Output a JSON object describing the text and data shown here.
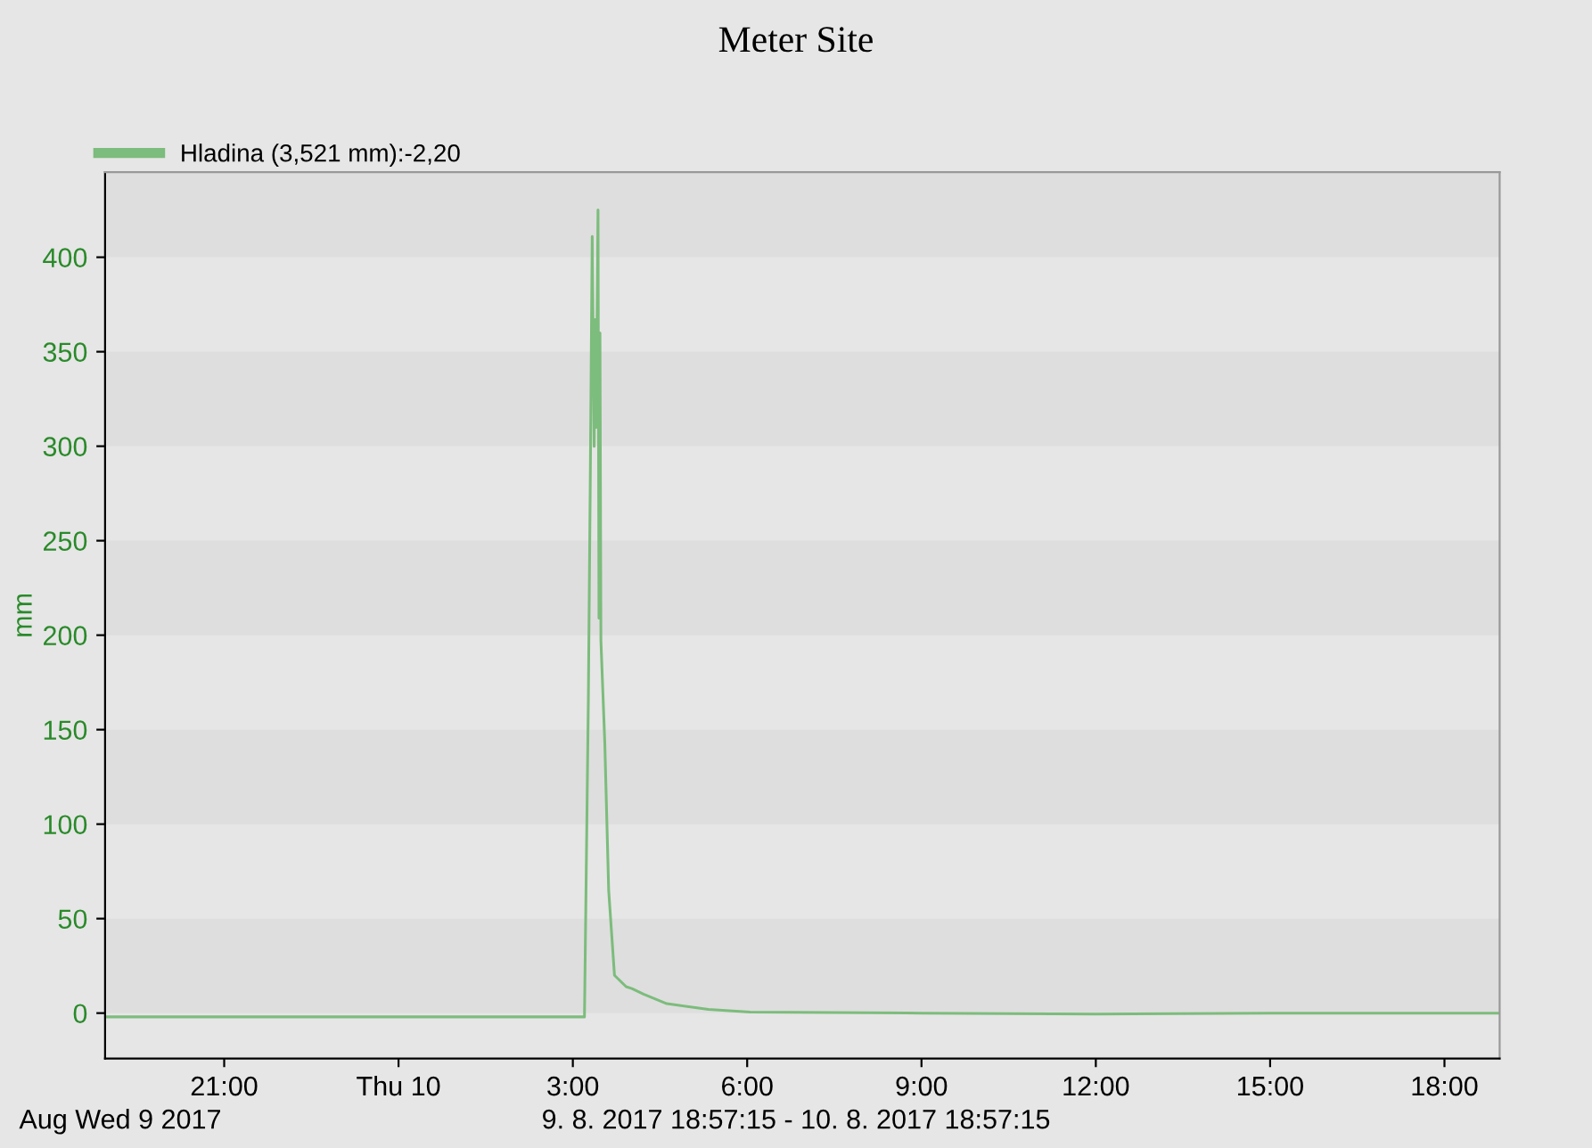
{
  "chart_data": {
    "type": "line",
    "title": "Meter Site",
    "ylabel": "mm",
    "annotations": [
      "Aug Wed 9 2017",
      "9. 8. 2017 18:57:15 - 10. 8. 2017 18:57:15"
    ],
    "series": [
      {
        "name": "Hladina (3,521 mm):-2,20",
        "color": "#7cbc7c",
        "x": [
          "2017-08-09T18:57",
          "2017-08-09T21:00",
          "2017-08-10T00:00",
          "2017-08-10T03:00",
          "2017-08-10T03:12",
          "2017-08-10T03:16",
          "2017-08-10T03:18",
          "2017-08-10T03:20",
          "2017-08-10T03:22",
          "2017-08-10T03:23",
          "2017-08-10T03:24",
          "2017-08-10T03:26",
          "2017-08-10T03:27",
          "2017-08-10T03:28",
          "2017-08-10T03:29",
          "2017-08-10T03:33",
          "2017-08-10T03:37",
          "2017-08-10T03:43",
          "2017-08-10T03:55",
          "2017-08-10T04:01",
          "2017-08-10T04:13",
          "2017-08-10T04:37",
          "2017-08-10T05:20",
          "2017-08-10T06:03",
          "2017-08-10T09:00",
          "2017-08-10T12:00",
          "2017-08-10T15:00",
          "2017-08-10T18:57"
        ],
        "values": [
          -2,
          -2,
          -2,
          -2,
          -2,
          165,
          282,
          411,
          300,
          367,
          310,
          425,
          209,
          360,
          197,
          143,
          65,
          20,
          14,
          13,
          10,
          5,
          2,
          0.5,
          0,
          -0.5,
          0,
          0
        ]
      }
    ],
    "xlim": [
      "2017-08-09T18:57",
      "2017-08-10T18:57"
    ],
    "xticks": [
      {
        "value": "2017-08-09T21:00",
        "label": "21:00"
      },
      {
        "value": "2017-08-10T00:00",
        "label": "Thu 10"
      },
      {
        "value": "2017-08-10T03:00",
        "label": "3:00"
      },
      {
        "value": "2017-08-10T06:00",
        "label": "6:00"
      },
      {
        "value": "2017-08-10T09:00",
        "label": "9:00"
      },
      {
        "value": "2017-08-10T12:00",
        "label": "12:00"
      },
      {
        "value": "2017-08-10T15:00",
        "label": "15:00"
      },
      {
        "value": "2017-08-10T18:00",
        "label": "18:00"
      }
    ],
    "ylim": [
      -24,
      445
    ],
    "yticks": [
      0,
      50,
      100,
      150,
      200,
      250,
      300,
      350,
      400
    ],
    "bands": [
      {
        "axis": "y",
        "from": 0,
        "to": 50,
        "color": "#dedede"
      },
      {
        "axis": "y",
        "from": 100,
        "to": 150,
        "color": "#dedede"
      },
      {
        "axis": "y",
        "from": 200,
        "to": 250,
        "color": "#dedede"
      },
      {
        "axis": "y",
        "from": 300,
        "to": 350,
        "color": "#dedede"
      },
      {
        "axis": "y",
        "from": 400,
        "to": 445,
        "color": "#dedede"
      }
    ],
    "legend": "top left",
    "line_style": "solid",
    "marker": "none"
  }
}
